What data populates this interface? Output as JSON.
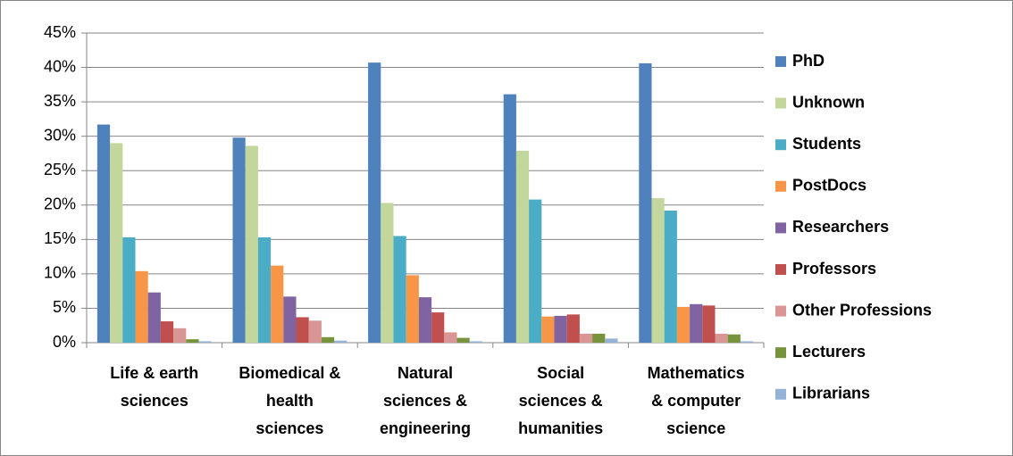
{
  "chart_data": {
    "type": "bar",
    "categories": [
      "Life & earth sciences",
      "Biomedical & health sciences",
      "Natural sciences & engineering",
      "Social sciences & humanities",
      "Mathematics & computer science"
    ],
    "series": [
      {
        "name": "PhD",
        "color": "#4f81bd",
        "values": [
          31.7,
          29.8,
          40.7,
          36.1,
          40.6
        ]
      },
      {
        "name": "Unknown",
        "color": "#c3d69b",
        "values": [
          29.0,
          28.6,
          20.3,
          27.9,
          21.0
        ]
      },
      {
        "name": "Students",
        "color": "#4bacc6",
        "values": [
          15.3,
          15.3,
          15.5,
          20.8,
          19.2
        ]
      },
      {
        "name": "PostDocs",
        "color": "#f79646",
        "values": [
          10.4,
          11.2,
          9.8,
          3.8,
          5.2
        ]
      },
      {
        "name": "Researchers",
        "color": "#8064a2",
        "values": [
          7.3,
          6.7,
          6.6,
          3.9,
          5.6
        ]
      },
      {
        "name": "Professors",
        "color": "#c0504d",
        "values": [
          3.1,
          3.7,
          4.4,
          4.1,
          5.4
        ]
      },
      {
        "name": "Other Professions",
        "color": "#d99694",
        "values": [
          2.1,
          3.2,
          1.5,
          1.3,
          1.3
        ]
      },
      {
        "name": "Lecturers",
        "color": "#77933c",
        "values": [
          0.5,
          0.8,
          0.7,
          1.3,
          1.2
        ]
      },
      {
        "name": "Librarians",
        "color": "#95b3d7",
        "values": [
          0.2,
          0.3,
          0.2,
          0.6,
          0.2
        ]
      }
    ],
    "ylim": [
      0,
      45
    ],
    "yticks": [
      {
        "value": 0,
        "label": "0%"
      },
      {
        "value": 5,
        "label": "5%"
      },
      {
        "value": 10,
        "label": "10%"
      },
      {
        "value": 15,
        "label": "15%"
      },
      {
        "value": 20,
        "label": "20%"
      },
      {
        "value": 25,
        "label": "25%"
      },
      {
        "value": 30,
        "label": "30%"
      },
      {
        "value": 35,
        "label": "35%"
      },
      {
        "value": 40,
        "label": "40%"
      },
      {
        "value": 45,
        "label": "45%"
      }
    ],
    "grid": true,
    "legend": "right"
  }
}
